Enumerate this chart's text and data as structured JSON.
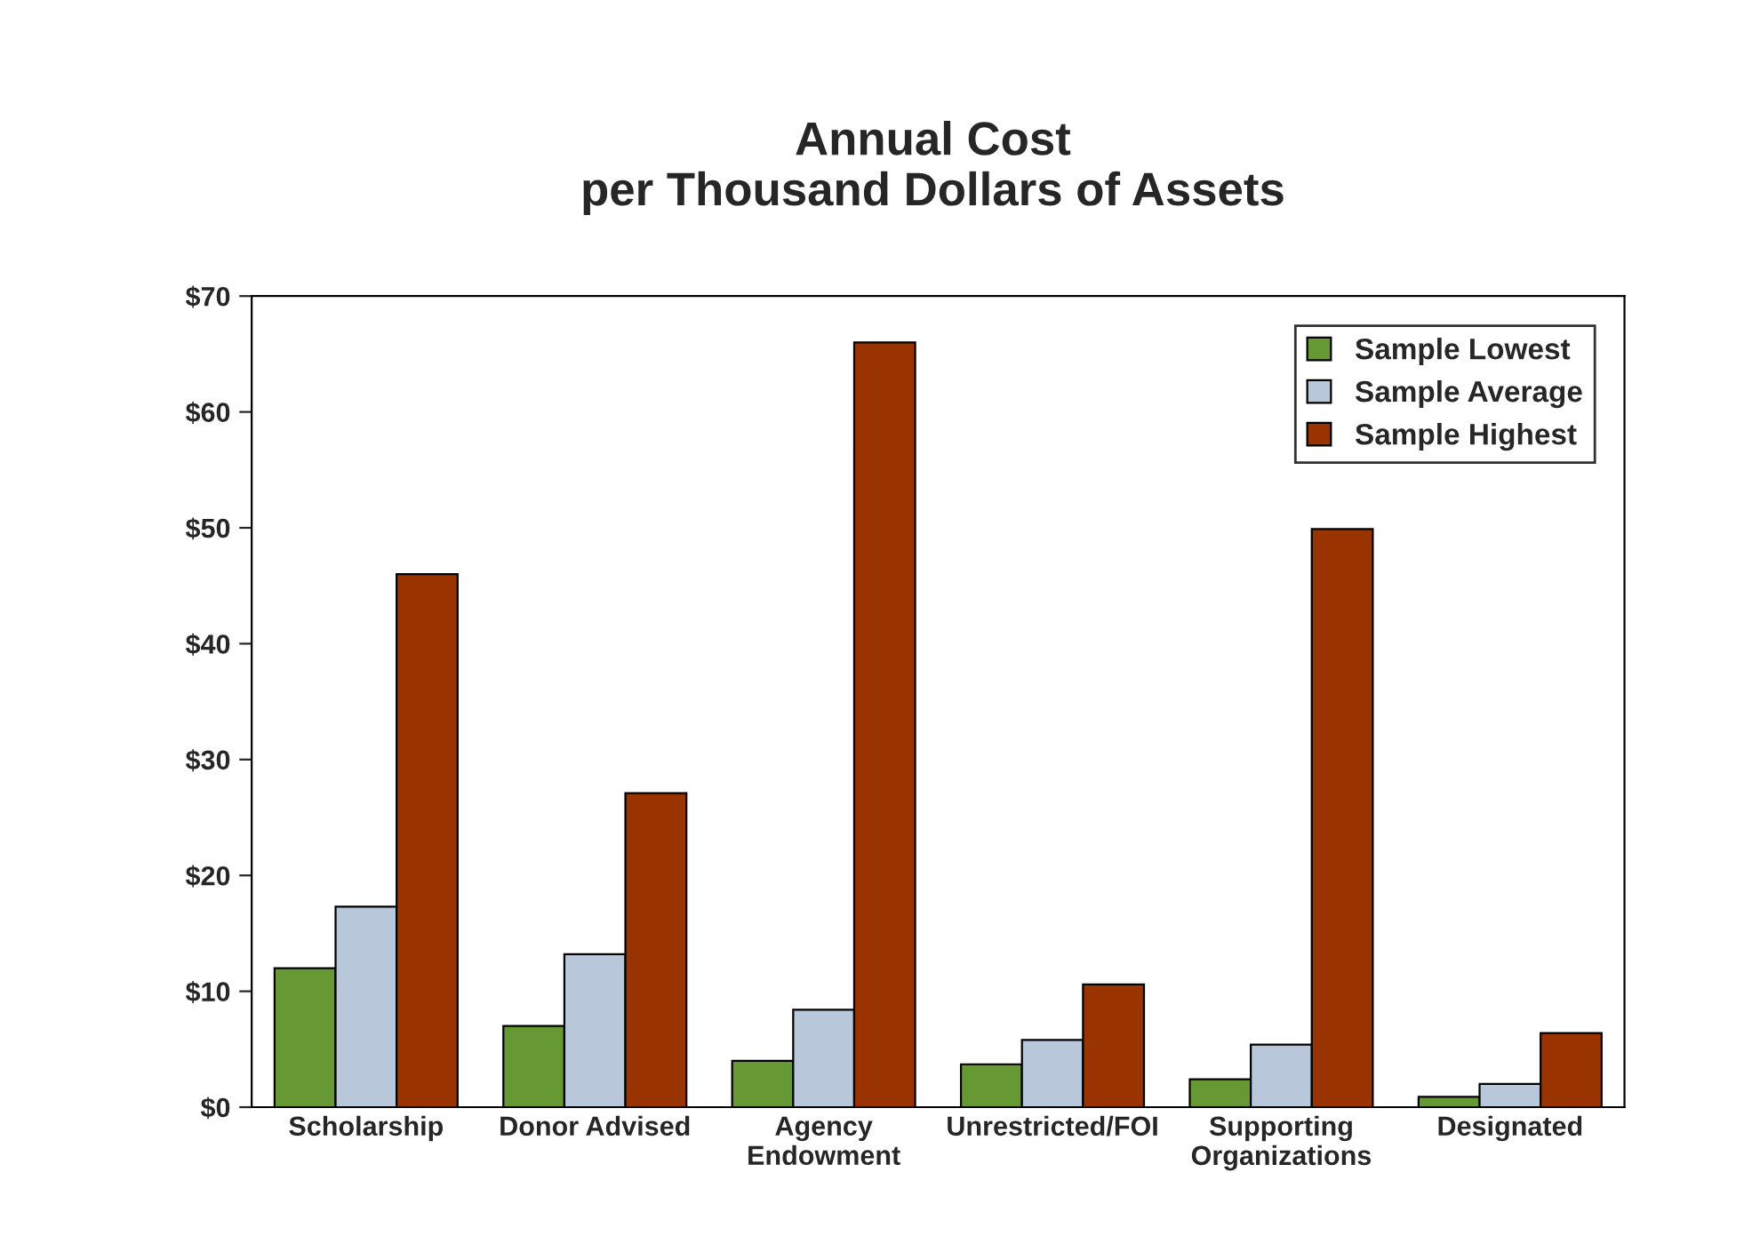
{
  "chart_data": {
    "type": "bar",
    "title": "Annual Cost\nper Thousand Dollars of Assets",
    "categories": [
      "Scholarship",
      "Donor Advised",
      "Agency\nEndowment",
      "Unrestricted/FOI",
      "Supporting\nOrganizations",
      "Designated"
    ],
    "series": [
      {
        "name": "Sample Lowest",
        "color": "#669933",
        "values": [
          12.0,
          7.0,
          4.0,
          3.7,
          2.4,
          0.9
        ]
      },
      {
        "name": "Sample Average",
        "color": "#b8c7d9",
        "values": [
          17.3,
          13.2,
          8.4,
          5.8,
          5.4,
          2.0
        ]
      },
      {
        "name": "Sample Highest",
        "color": "#993300",
        "values": [
          46.0,
          27.1,
          66.0,
          10.6,
          49.9,
          6.4
        ]
      }
    ],
    "ylim": [
      0,
      70
    ],
    "yticks": [
      {
        "value": 0,
        "label": "$0"
      },
      {
        "value": 10,
        "label": "$10"
      },
      {
        "value": 20,
        "label": "$20"
      },
      {
        "value": 30,
        "label": "$30"
      },
      {
        "value": 40,
        "label": "$40"
      },
      {
        "value": 50,
        "label": "$50"
      },
      {
        "value": 60,
        "label": "$60"
      },
      {
        "value": 70,
        "label": "$70"
      }
    ],
    "grid": false,
    "legend": "top right"
  }
}
